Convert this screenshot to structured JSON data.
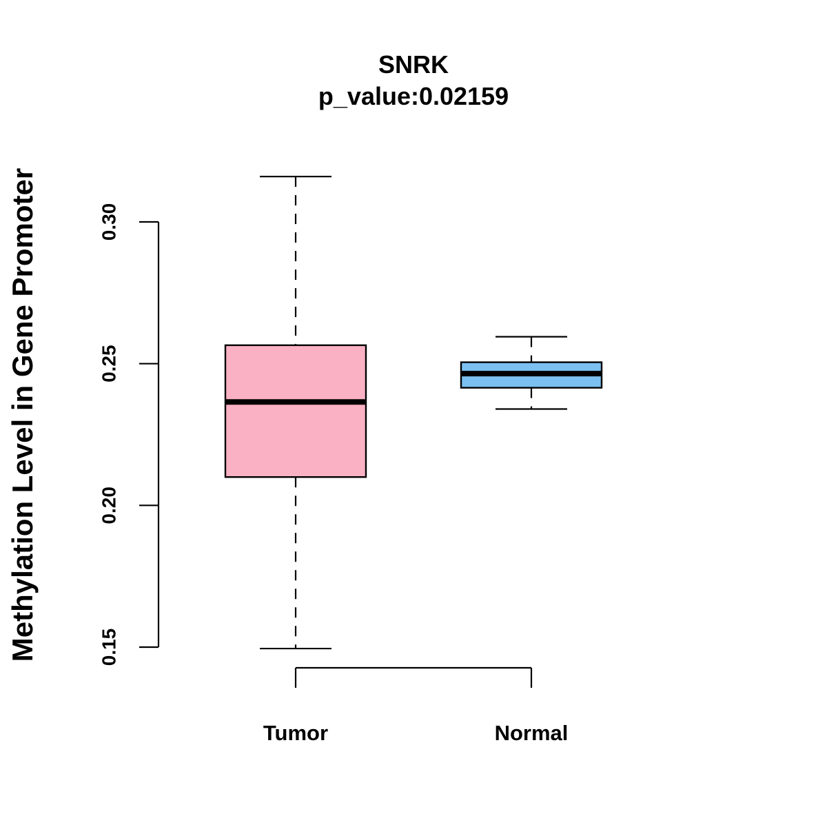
{
  "chart_data": {
    "type": "boxplot",
    "title": "SNRK",
    "subtitle": "p_value:0.02159",
    "xlabel": "",
    "ylabel": "Methylation Level in Gene Promoter",
    "ylim": [
      0.15,
      0.3
    ],
    "yticks": [
      0.15,
      0.2,
      0.25,
      0.3
    ],
    "ytick_labels": [
      "0.15",
      "0.20",
      "0.25",
      "0.30"
    ],
    "categories": [
      "Tumor",
      "Normal"
    ],
    "boxes": [
      {
        "name": "Tumor",
        "whisker_low": 0.1495,
        "q1": 0.21,
        "median": 0.2365,
        "q3": 0.2565,
        "whisker_high": 0.316,
        "color": "#FBB1C4"
      },
      {
        "name": "Normal",
        "whisker_low": 0.234,
        "q1": 0.2415,
        "median": 0.2465,
        "q3": 0.2505,
        "whisker_high": 0.2595,
        "color": "#7BC0F0"
      }
    ],
    "grid": false,
    "legend": "none"
  }
}
